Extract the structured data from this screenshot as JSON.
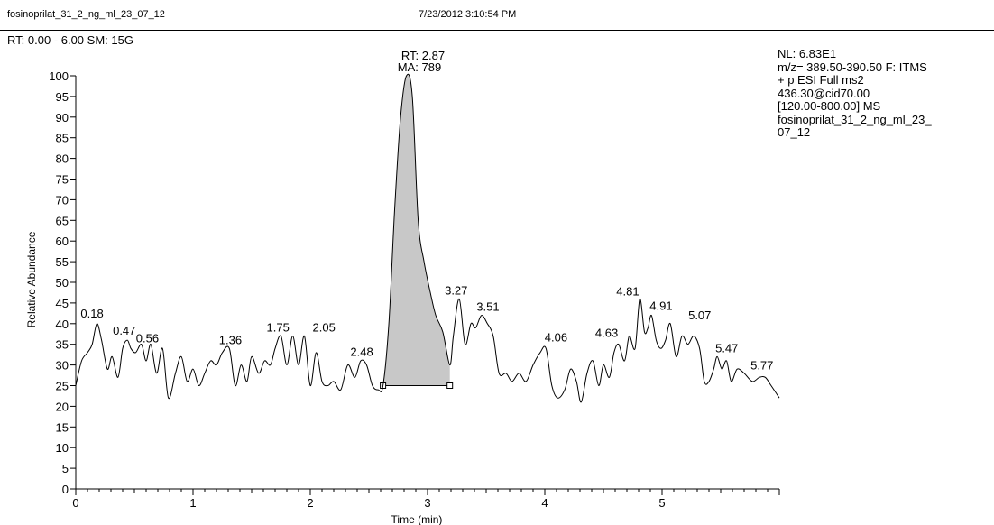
{
  "header": {
    "file_name": "fosinoprilat_31_2_ng_ml_23_07_12",
    "timestamp": "7/23/2012 3:10:54 PM",
    "rt_range": "RT: 0.00 - 6.00   SM: 15G"
  },
  "info": {
    "lines": [
      "NL: 6.83E1",
      "m/z= 389.50-390.50 F: ITMS",
      "+ p ESI Full ms2",
      "436.30@cid70.00",
      "[120.00-800.00]  MS",
      "fosinoprilat_31_2_ng_ml_23_",
      "07_12"
    ]
  },
  "chart_data": {
    "type": "line",
    "xlabel": "Time (min)",
    "ylabel": "Relative Abundance",
    "xlim": [
      0,
      6
    ],
    "ylim": [
      0,
      100
    ],
    "x_ticks": [
      0,
      1,
      2,
      3,
      4,
      5
    ],
    "y_ticks": [
      0,
      5,
      10,
      15,
      20,
      25,
      30,
      35,
      40,
      45,
      50,
      55,
      60,
      65,
      70,
      75,
      80,
      85,
      90,
      95,
      100
    ],
    "x": [
      0.0,
      0.05,
      0.1,
      0.14,
      0.18,
      0.22,
      0.27,
      0.31,
      0.36,
      0.4,
      0.44,
      0.47,
      0.51,
      0.56,
      0.6,
      0.64,
      0.69,
      0.74,
      0.79,
      0.85,
      0.9,
      0.95,
      1.0,
      1.05,
      1.1,
      1.15,
      1.2,
      1.25,
      1.31,
      1.36,
      1.41,
      1.46,
      1.5,
      1.56,
      1.61,
      1.66,
      1.7,
      1.75,
      1.8,
      1.85,
      1.9,
      1.95,
      2.0,
      2.05,
      2.1,
      2.15,
      2.2,
      2.26,
      2.32,
      2.38,
      2.43,
      2.48,
      2.53,
      2.58,
      2.62,
      2.67,
      2.72,
      2.77,
      2.82,
      2.87,
      2.92,
      2.97,
      3.02,
      3.07,
      3.13,
      3.19,
      3.22,
      3.27,
      3.32,
      3.37,
      3.41,
      3.46,
      3.51,
      3.56,
      3.61,
      3.67,
      3.72,
      3.78,
      3.84,
      3.9,
      3.96,
      4.01,
      4.06,
      4.11,
      4.17,
      4.22,
      4.27,
      4.31,
      4.36,
      4.41,
      4.46,
      4.5,
      4.55,
      4.59,
      4.63,
      4.68,
      4.72,
      4.77,
      4.81,
      4.85,
      4.88,
      4.91,
      4.95,
      4.99,
      5.03,
      5.07,
      5.12,
      5.17,
      5.22,
      5.27,
      5.32,
      5.36,
      5.4,
      5.44,
      5.47,
      5.51,
      5.55,
      5.59,
      5.64,
      5.7,
      5.77,
      5.83,
      5.88,
      5.93,
      6.0
    ],
    "y": [
      25,
      31,
      33,
      35,
      40,
      36,
      29,
      32,
      27,
      34,
      36,
      34,
      33,
      35,
      31,
      35,
      28,
      34,
      22,
      28,
      32,
      26,
      29,
      25,
      28,
      31,
      30,
      33,
      34,
      25,
      30,
      26,
      32,
      28,
      31,
      30,
      34,
      37,
      30,
      37,
      30,
      37,
      25,
      33,
      26,
      25,
      26,
      24,
      30,
      27,
      31,
      30,
      25,
      24,
      25,
      40,
      68,
      90,
      100,
      95,
      65,
      55,
      48,
      42,
      38,
      30,
      37,
      46,
      35,
      40,
      39,
      42,
      40,
      37,
      28,
      28,
      26,
      28,
      26,
      30,
      33,
      34,
      25,
      22,
      24,
      29,
      26,
      21,
      28,
      31,
      25,
      30,
      27,
      33,
      35,
      31,
      37,
      34,
      46,
      38,
      39,
      42,
      36,
      34,
      36,
      40,
      32,
      37,
      35,
      37,
      34,
      26,
      26,
      29,
      32,
      29,
      31,
      26,
      29,
      28,
      26,
      27,
      27,
      25,
      22
    ],
    "peak_labels": [
      {
        "x": 0.18,
        "y": 40,
        "label": "0.18",
        "dx": -18,
        "dy": -7
      },
      {
        "x": 0.47,
        "y": 36,
        "label": "0.47",
        "dx": -20,
        "dy": -6
      },
      {
        "x": 0.56,
        "y": 35,
        "label": "0.56",
        "dx": -6,
        "dy": -2
      },
      {
        "x": 1.36,
        "y": 34,
        "label": "1.36",
        "dx": -18,
        "dy": -5
      },
      {
        "x": 1.75,
        "y": 37,
        "label": "1.75",
        "dx": -16,
        "dy": -5
      },
      {
        "x": 2.05,
        "y": 37,
        "label": "2.05",
        "dx": -4,
        "dy": -5
      },
      {
        "x": 2.48,
        "y": 30,
        "label": "2.48",
        "dx": -18,
        "dy": -10
      },
      {
        "x": 3.27,
        "y": 46,
        "label": "3.27",
        "dx": -16,
        "dy": -5
      },
      {
        "x": 3.51,
        "y": 42,
        "label": "3.51",
        "dx": -12,
        "dy": -5
      },
      {
        "x": 4.06,
        "y": 34,
        "label": "4.06",
        "dx": -8,
        "dy": -8
      },
      {
        "x": 4.63,
        "y": 35,
        "label": "4.63",
        "dx": -26,
        "dy": -8
      },
      {
        "x": 4.81,
        "y": 46,
        "label": "4.81",
        "dx": -26,
        "dy": -4
      },
      {
        "x": 4.91,
        "y": 42,
        "label": "4.91",
        "dx": -2,
        "dy": -6
      },
      {
        "x": 5.07,
        "y": 40,
        "label": "5.07",
        "dx": 20,
        "dy": -5
      },
      {
        "x": 5.47,
        "y": 32,
        "label": "5.47",
        "dx": -2,
        "dy": -5
      },
      {
        "x": 5.77,
        "y": 27,
        "label": "5.77",
        "dx": -2,
        "dy": -9
      }
    ],
    "top_peak": {
      "rt_label": "RT: 2.87",
      "ma_label": "MA: 789"
    },
    "integration": {
      "x_start": 2.62,
      "x_end": 3.19,
      "baseline_y": 25,
      "fill": "#c8c8c8"
    }
  }
}
